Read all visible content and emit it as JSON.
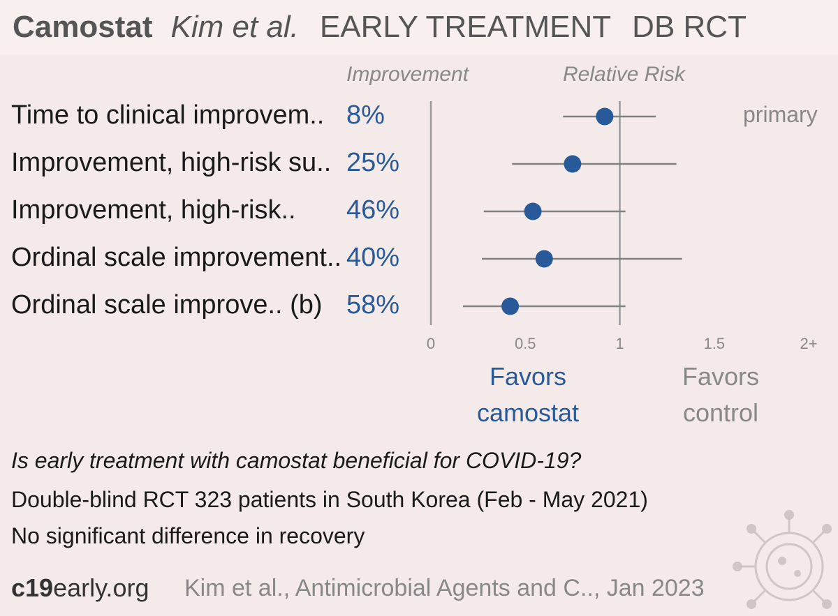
{
  "header": {
    "drug": "Camostat",
    "author": "Kim et al.",
    "stage": "EARLY TREATMENT",
    "design": "DB RCT"
  },
  "columns": {
    "improvement": "Improvement",
    "relative_risk": "Relative Risk"
  },
  "primary_tag": "primary",
  "chart_data": {
    "type": "forest",
    "xlim": [
      0,
      2
    ],
    "reference_line": 1,
    "ticks": [
      "0",
      "0.5",
      "1",
      "1.5",
      "2+"
    ],
    "tick_values": [
      0,
      0.5,
      1,
      1.5,
      2
    ],
    "rows": [
      {
        "label": "Time to clinical improvem..",
        "improvement": "8%",
        "rr": 0.92,
        "ci_low": 0.7,
        "ci_high": 1.19
      },
      {
        "label": "Improvement, high-risk su..",
        "improvement": "25%",
        "rr": 0.75,
        "ci_low": 0.43,
        "ci_high": 1.3
      },
      {
        "label": "Improvement, high-risk..",
        "improvement": "46%",
        "rr": 0.54,
        "ci_low": 0.28,
        "ci_high": 1.03
      },
      {
        "label": "Ordinal scale improvement..",
        "improvement": "40%",
        "rr": 0.6,
        "ci_low": 0.27,
        "ci_high": 1.33
      },
      {
        "label": "Ordinal scale improve.. (b)",
        "improvement": "58%",
        "rr": 0.42,
        "ci_low": 0.17,
        "ci_high": 1.03
      }
    ],
    "favors_left": [
      "Favors",
      "camostat"
    ],
    "favors_right": [
      "Favors",
      "control"
    ],
    "colors": {
      "point": "#285a99",
      "ci": "#808080",
      "axis": "#999999"
    }
  },
  "summary": {
    "question": "Is early treatment with camostat beneficial for COVID-19?",
    "design_line": "Double-blind RCT 323 patients in South Korea (Feb - May 2021)",
    "result_line": "No significant difference in recovery"
  },
  "footer": {
    "site_bold": "c19",
    "site_rest": "early.org",
    "citation": "Kim et al., Antimicrobial Agents and C.., Jan 2023"
  }
}
